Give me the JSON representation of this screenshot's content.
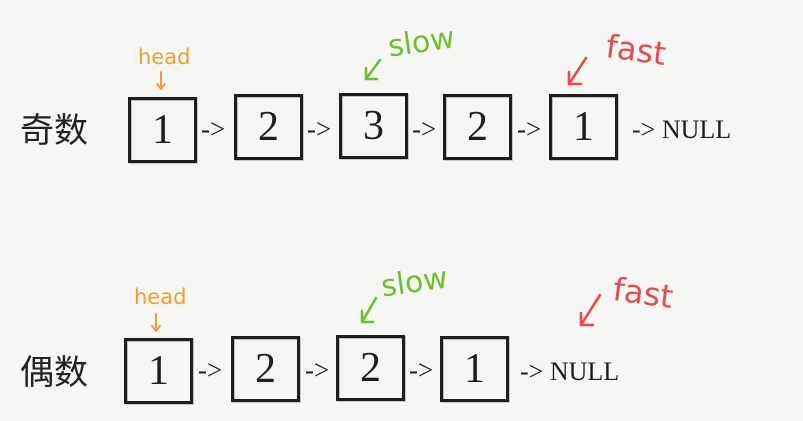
{
  "colors": {
    "background": "#f6f6f4",
    "ink": "#1e1e1e",
    "head": "#f39c2f",
    "slow": "#6fbe2f",
    "fast": "#e54c52"
  },
  "icons": {
    "head_pointer": "arrow-down-icon",
    "slow_pointer": "arrow-down-left-icon",
    "fast_pointer": "arrow-down-left-icon"
  },
  "rows": [
    {
      "label": "奇数",
      "head": "head",
      "slow": "slow",
      "fast": "fast",
      "nodes": [
        1,
        2,
        3,
        2,
        1
      ],
      "link": "->",
      "tail": "-> NULL"
    },
    {
      "label": "偶数",
      "head": "head",
      "slow": "slow",
      "fast": "fast",
      "nodes": [
        1,
        2,
        2,
        1
      ],
      "link": "->",
      "tail": "-> NULL"
    }
  ]
}
